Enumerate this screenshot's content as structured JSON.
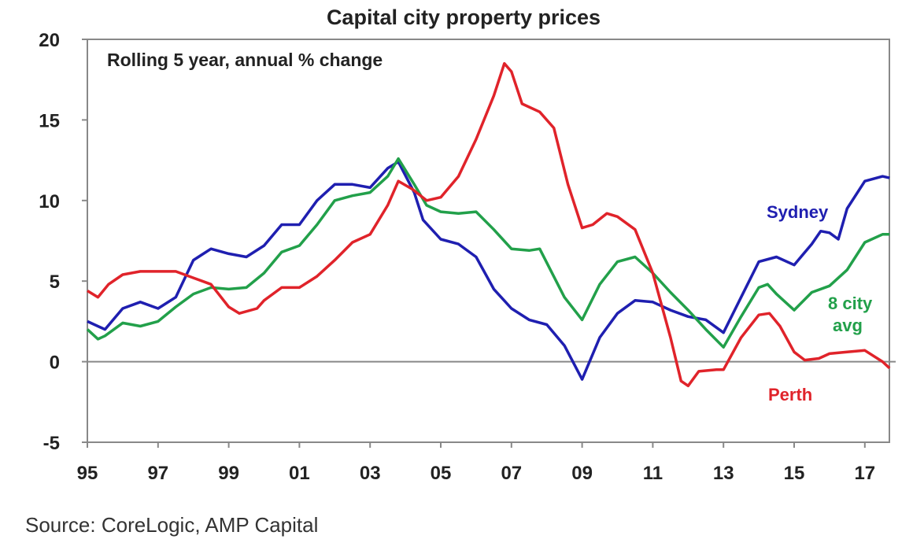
{
  "chart_data": {
    "type": "line",
    "title": "Capital city property prices",
    "subtitle": "Rolling 5 year, annual % change",
    "source": "Source: CoreLogic, AMP Capital",
    "xlabel": "",
    "ylabel": "",
    "xlim": [
      1995,
      2017.7
    ],
    "ylim": [
      -5,
      20
    ],
    "y_ticks": [
      -5,
      0,
      5,
      10,
      15,
      20
    ],
    "x_ticks": [
      {
        "year": 1995,
        "label": "95"
      },
      {
        "year": 1997,
        "label": "97"
      },
      {
        "year": 1999,
        "label": "99"
      },
      {
        "year": 2001,
        "label": "01"
      },
      {
        "year": 2003,
        "label": "03"
      },
      {
        "year": 2005,
        "label": "05"
      },
      {
        "year": 2007,
        "label": "07"
      },
      {
        "year": 2009,
        "label": "09"
      },
      {
        "year": 2011,
        "label": "11"
      },
      {
        "year": 2013,
        "label": "13"
      },
      {
        "year": 2015,
        "label": "15"
      },
      {
        "year": 2017,
        "label": "17"
      }
    ],
    "grid": false,
    "zero_line": true,
    "legend": "inline labels at right",
    "series": [
      {
        "name": "Sydney",
        "label_lines": [
          "Sydney"
        ],
        "color": "#1f1fb0",
        "x": [
          1995.0,
          1995.5,
          1996.0,
          1996.5,
          1997.0,
          1997.5,
          1998.0,
          1998.5,
          1999.0,
          1999.5,
          2000.0,
          2000.5,
          2001.0,
          2001.5,
          2002.0,
          2002.5,
          2003.0,
          2003.5,
          2003.8,
          2004.25,
          2004.5,
          2005.0,
          2005.5,
          2006.0,
          2006.5,
          2007.0,
          2007.5,
          2008.0,
          2008.5,
          2009.0,
          2009.5,
          2010.0,
          2010.5,
          2011.0,
          2011.5,
          2012.0,
          2012.5,
          2013.0,
          2013.5,
          2014.0,
          2014.5,
          2015.0,
          2015.5,
          2015.75,
          2016.0,
          2016.25,
          2016.5,
          2017.0,
          2017.5,
          2017.7
        ],
        "y": [
          2.5,
          2.0,
          3.3,
          3.7,
          3.3,
          4.0,
          6.3,
          7.0,
          6.7,
          6.5,
          7.2,
          8.5,
          8.5,
          10.0,
          11.0,
          11.0,
          10.8,
          12.0,
          12.4,
          10.5,
          8.8,
          7.6,
          7.3,
          6.5,
          4.5,
          3.3,
          2.6,
          2.3,
          1.0,
          -1.1,
          1.5,
          3.0,
          3.8,
          3.7,
          3.2,
          2.8,
          2.6,
          1.8,
          4.0,
          6.2,
          6.5,
          6.0,
          7.3,
          8.1,
          8.0,
          7.6,
          9.5,
          11.2,
          11.5,
          11.4
        ]
      },
      {
        "name": "8 city avg",
        "label_lines": [
          "8 city",
          "avg"
        ],
        "color": "#22a04a",
        "x": [
          1995.0,
          1995.3,
          1995.5,
          1996.0,
          1996.5,
          1997.0,
          1997.5,
          1998.0,
          1998.5,
          1999.0,
          1999.5,
          2000.0,
          2000.5,
          2001.0,
          2001.5,
          2002.0,
          2002.5,
          2003.0,
          2003.5,
          2003.8,
          2004.25,
          2004.6,
          2005.0,
          2005.5,
          2006.0,
          2006.5,
          2007.0,
          2007.5,
          2007.8,
          2008.5,
          2009.0,
          2009.5,
          2010.0,
          2010.5,
          2011.0,
          2011.5,
          2012.0,
          2012.5,
          2013.0,
          2013.5,
          2014.0,
          2014.25,
          2014.5,
          2015.0,
          2015.5,
          2016.0,
          2016.5,
          2017.0,
          2017.5,
          2017.7
        ],
        "y": [
          2.0,
          1.4,
          1.6,
          2.4,
          2.2,
          2.5,
          3.4,
          4.2,
          4.6,
          4.5,
          4.6,
          5.5,
          6.8,
          7.2,
          8.5,
          10.0,
          10.3,
          10.5,
          11.5,
          12.6,
          11.0,
          9.7,
          9.3,
          9.2,
          9.3,
          8.2,
          7.0,
          6.9,
          7.0,
          4.0,
          2.6,
          4.8,
          6.2,
          6.5,
          5.5,
          4.3,
          3.2,
          2.0,
          0.9,
          2.8,
          4.6,
          4.8,
          4.2,
          3.2,
          4.3,
          4.7,
          5.7,
          7.4,
          7.9,
          7.9
        ]
      },
      {
        "name": "Perth",
        "label_lines": [
          "Perth"
        ],
        "color": "#e0232a",
        "x": [
          1995.0,
          1995.3,
          1995.6,
          1996.0,
          1996.5,
          1997.0,
          1997.5,
          1998.0,
          1998.5,
          1999.0,
          1999.3,
          1999.8,
          2000.0,
          2000.5,
          2001.0,
          2001.5,
          2002.0,
          2002.5,
          2003.0,
          2003.5,
          2003.8,
          2004.2,
          2004.6,
          2005.0,
          2005.5,
          2006.0,
          2006.5,
          2006.8,
          2007.0,
          2007.3,
          2007.8,
          2008.2,
          2008.6,
          2009.0,
          2009.3,
          2009.7,
          2010.0,
          2010.5,
          2011.0,
          2011.5,
          2011.8,
          2012.0,
          2012.3,
          2012.8,
          2013.0,
          2013.5,
          2014.0,
          2014.3,
          2014.6,
          2015.0,
          2015.3,
          2015.7,
          2016.0,
          2016.5,
          2017.0,
          2017.5,
          2017.7
        ],
        "y": [
          4.4,
          4.0,
          4.8,
          5.4,
          5.6,
          5.6,
          5.6,
          5.2,
          4.8,
          3.4,
          3.0,
          3.3,
          3.8,
          4.6,
          4.6,
          5.3,
          6.3,
          7.4,
          7.9,
          9.7,
          11.2,
          10.7,
          10.0,
          10.2,
          11.5,
          13.8,
          16.5,
          18.5,
          18.0,
          16.0,
          15.5,
          14.5,
          11.0,
          8.3,
          8.5,
          9.2,
          9.0,
          8.2,
          5.5,
          1.5,
          -1.2,
          -1.5,
          -0.6,
          -0.5,
          -0.5,
          1.5,
          2.9,
          3.0,
          2.2,
          0.6,
          0.1,
          0.2,
          0.5,
          0.6,
          0.7,
          0.0,
          -0.4
        ]
      }
    ]
  }
}
